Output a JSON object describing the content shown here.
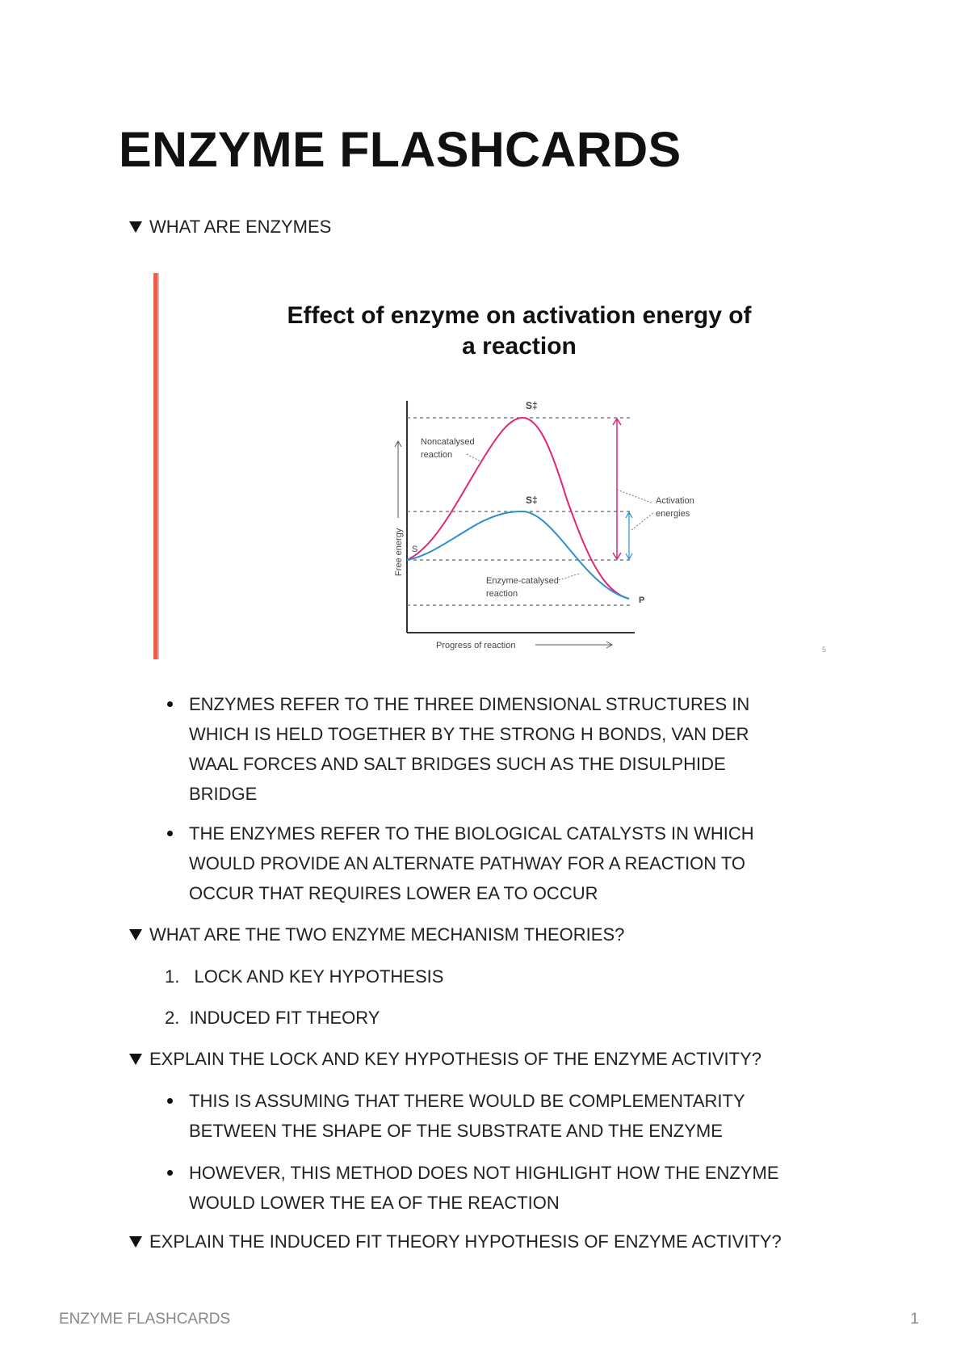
{
  "document": {
    "title": "ENZYME FLASHCARDS",
    "footer_title": "ENZYME FLASHCARDS",
    "page_number": "1"
  },
  "sections": [
    {
      "heading": "WHAT ARE ENZYMES",
      "figure": {
        "title_line1": "Effect of enzyme on activation energy of",
        "title_line2": "a reaction",
        "labels": {
          "s_dagger_top": "S‡",
          "s_dagger_enzyme": "S‡",
          "substrate": "S",
          "product": "P",
          "noncatalysed_1": "Noncatalysed",
          "noncatalysed_2": "reaction",
          "activation_1": "Activation",
          "activation_2": "energies",
          "enzyme_catalysed_1": "Enzyme-catalysed",
          "enzyme_catalysed_2": "reaction",
          "y_axis": "Free energy",
          "x_axis": "Progress of reaction",
          "slide_number": "5"
        },
        "colors": {
          "noncatalysed": "#e0267a",
          "catalysed": "#2a8fd0",
          "side_bar": "#e8604c"
        }
      },
      "bullets": [
        [
          "ENZYMES REFER TO THE THREE DIMENSIONAL STRUCTURES IN",
          "WHICH IS HELD TOGETHER BY THE STRONG H BONDS, VAN DER",
          "WAAL FORCES AND SALT BRIDGES SUCH AS THE DISULPHIDE",
          "BRIDGE"
        ],
        [
          "THE ENZYMES REFER TO THE BIOLOGICAL CATALYSTS IN WHICH",
          "WOULD PROVIDE AN ALTERNATE PATHWAY FOR A REACTION TO",
          "OCCUR THAT REQUIRES LOWER EA TO OCCUR"
        ]
      ]
    },
    {
      "heading": "WHAT ARE THE TWO ENZYME MECHANISM THEORIES?",
      "numbered": [
        {
          "num": "1.",
          "text": "LOCK AND KEY HYPOTHESIS"
        },
        {
          "num": "2.",
          "text": "INDUCED FIT THEORY"
        }
      ]
    },
    {
      "heading": "EXPLAIN THE LOCK AND KEY HYPOTHESIS OF THE ENZYME ACTIVITY?",
      "bullets": [
        [
          "THIS IS ASSUMING THAT THERE WOULD BE COMPLEMENTARITY",
          "BETWEEN THE SHAPE OF THE SUBSTRATE AND THE ENZYME"
        ],
        [
          "HOWEVER, THIS METHOD DOES NOT HIGHLIGHT HOW THE ENZYME",
          "WOULD LOWER THE EA OF THE REACTION"
        ]
      ]
    },
    {
      "heading": "EXPLAIN THE INDUCED FIT THEORY HYPOTHESIS OF ENZYME ACTIVITY?"
    }
  ]
}
